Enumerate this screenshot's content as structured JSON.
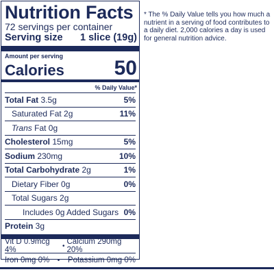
{
  "label": {
    "title": "Nutrition Facts",
    "servings_per_container": "72 servings per container",
    "serving_size_label": "Serving size",
    "serving_size_value": "1 slice (19g)",
    "amount_per_serving": "Amount per serving",
    "calories_label": "Calories",
    "calories_value": "50",
    "dv_header": "% Daily Value*",
    "nutrients": [
      {
        "name": "Total Fat",
        "amount": " 3.5g",
        "dv": "5%"
      },
      {
        "name": "Saturated Fat",
        "amount": " 2g",
        "dv": "11%"
      },
      {
        "name": "Trans",
        "amount": " Fat 0g",
        "dv": ""
      },
      {
        "name": "Cholesterol",
        "amount": " 15mg",
        "dv": "5%"
      },
      {
        "name": "Sodium",
        "amount": " 230mg",
        "dv": "10%"
      },
      {
        "name": "Total Carbohydrate",
        "amount": " 2g",
        "dv": "1%"
      },
      {
        "name": "Dietary Fiber",
        "amount": " 0g",
        "dv": "0%"
      },
      {
        "name": "Total Sugars",
        "amount": " 2g",
        "dv": ""
      },
      {
        "name": "Includes 0g Added Sugars",
        "amount": "",
        "dv": "0%"
      },
      {
        "name": "Protein",
        "amount": " 3g",
        "dv": ""
      }
    ],
    "vitamins": [
      {
        "left": "Vit D 0.9mcg 4%",
        "right": "Calcium 290mg 20%"
      },
      {
        "left": "Iron 0mg 0%",
        "right": "Potassium 0mg 0%"
      }
    ],
    "bullet": "•",
    "footnote_star": "*",
    "footnote": "The % Daily Value tells you how much a nutrient in a serving of food contributes to a daily diet. 2,000 calories a day is used for general nutrition advice."
  }
}
